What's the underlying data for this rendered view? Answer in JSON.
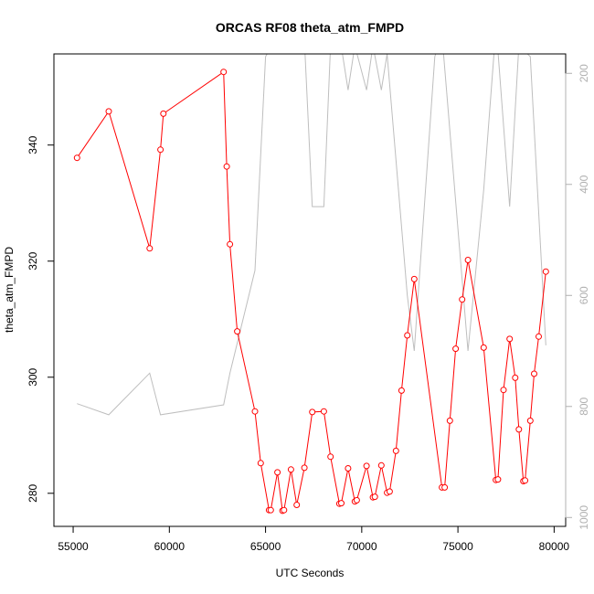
{
  "chart_data": {
    "type": "line",
    "title": "ORCAS RF08 theta_atm_FMPD",
    "xlabel": "UTC Seconds",
    "ylabel": "theta_atm_FMPD",
    "xlim": [
      54000,
      80600
    ],
    "ylim": [
      274.3,
      355.7
    ],
    "y2lim": [
      1016,
      165
    ],
    "y2_reversed": true,
    "x_ticks": [
      55000,
      60000,
      65000,
      70000,
      75000,
      80000
    ],
    "y_ticks": [
      280,
      300,
      320,
      340
    ],
    "y2_ticks": [
      200,
      400,
      600,
      800,
      1000
    ],
    "series": [
      {
        "color": "#ff0000",
        "markers": true,
        "axis": "left",
        "points": [
          [
            55200,
            337.8
          ],
          [
            56850,
            345.8
          ],
          [
            58980,
            322.2
          ],
          [
            59540,
            339.2
          ],
          [
            59690,
            345.4
          ],
          [
            62820,
            352.6
          ],
          [
            62980,
            336.3
          ],
          [
            63150,
            322.9
          ],
          [
            63530,
            307.9
          ],
          [
            64450,
            294.1
          ],
          [
            64750,
            285.2
          ],
          [
            65180,
            277.1
          ],
          [
            65270,
            277.1
          ],
          [
            65620,
            283.6
          ],
          [
            65880,
            277.0
          ],
          [
            65960,
            277.1
          ],
          [
            66320,
            284.1
          ],
          [
            66620,
            278.0
          ],
          [
            67020,
            284.4
          ],
          [
            67430,
            294.0
          ],
          [
            68030,
            294.1
          ],
          [
            68380,
            286.3
          ],
          [
            68840,
            278.2
          ],
          [
            68940,
            278.3
          ],
          [
            69290,
            284.3
          ],
          [
            69640,
            278.6
          ],
          [
            69740,
            278.8
          ],
          [
            70250,
            284.7
          ],
          [
            70580,
            279.3
          ],
          [
            70680,
            279.4
          ],
          [
            71020,
            284.8
          ],
          [
            71320,
            280.1
          ],
          [
            71450,
            280.3
          ],
          [
            71780,
            287.3
          ],
          [
            72070,
            297.7
          ],
          [
            72370,
            307.2
          ],
          [
            72730,
            316.9
          ],
          [
            74170,
            281.0
          ],
          [
            74310,
            281.0
          ],
          [
            74580,
            292.5
          ],
          [
            74880,
            304.9
          ],
          [
            75220,
            313.4
          ],
          [
            75520,
            320.2
          ],
          [
            76340,
            305.1
          ],
          [
            76970,
            282.3
          ],
          [
            77080,
            282.4
          ],
          [
            77370,
            297.8
          ],
          [
            77690,
            306.6
          ],
          [
            77980,
            299.9
          ],
          [
            78170,
            291.0
          ],
          [
            78400,
            282.1
          ],
          [
            78490,
            282.2
          ],
          [
            78760,
            292.5
          ],
          [
            78960,
            300.6
          ],
          [
            79200,
            307.0
          ],
          [
            79570,
            318.2
          ]
        ]
      },
      {
        "color": "#bebebe",
        "markers": false,
        "axis": "right",
        "points": [
          [
            55200,
            795
          ],
          [
            56850,
            815
          ],
          [
            58980,
            740
          ],
          [
            59540,
            815
          ],
          [
            62820,
            797
          ],
          [
            62980,
            769
          ],
          [
            63150,
            740
          ],
          [
            64450,
            555
          ],
          [
            65000,
            170
          ],
          [
            65620,
            130
          ],
          [
            65880,
            150
          ],
          [
            66320,
            120
          ],
          [
            66620,
            150
          ],
          [
            67020,
            140
          ],
          [
            67430,
            440
          ],
          [
            68030,
            440
          ],
          [
            68380,
            150
          ],
          [
            68840,
            130
          ],
          [
            69290,
            230
          ],
          [
            69640,
            150
          ],
          [
            70250,
            230
          ],
          [
            70580,
            150
          ],
          [
            71020,
            230
          ],
          [
            71320,
            165
          ],
          [
            72370,
            600
          ],
          [
            72730,
            700
          ],
          [
            73800,
            170
          ],
          [
            74170,
            130
          ],
          [
            75520,
            700
          ],
          [
            76340,
            410
          ],
          [
            76970,
            120
          ],
          [
            77080,
            160
          ],
          [
            77690,
            440
          ],
          [
            78170,
            150
          ],
          [
            78760,
            170
          ],
          [
            79570,
            690
          ]
        ]
      }
    ]
  }
}
